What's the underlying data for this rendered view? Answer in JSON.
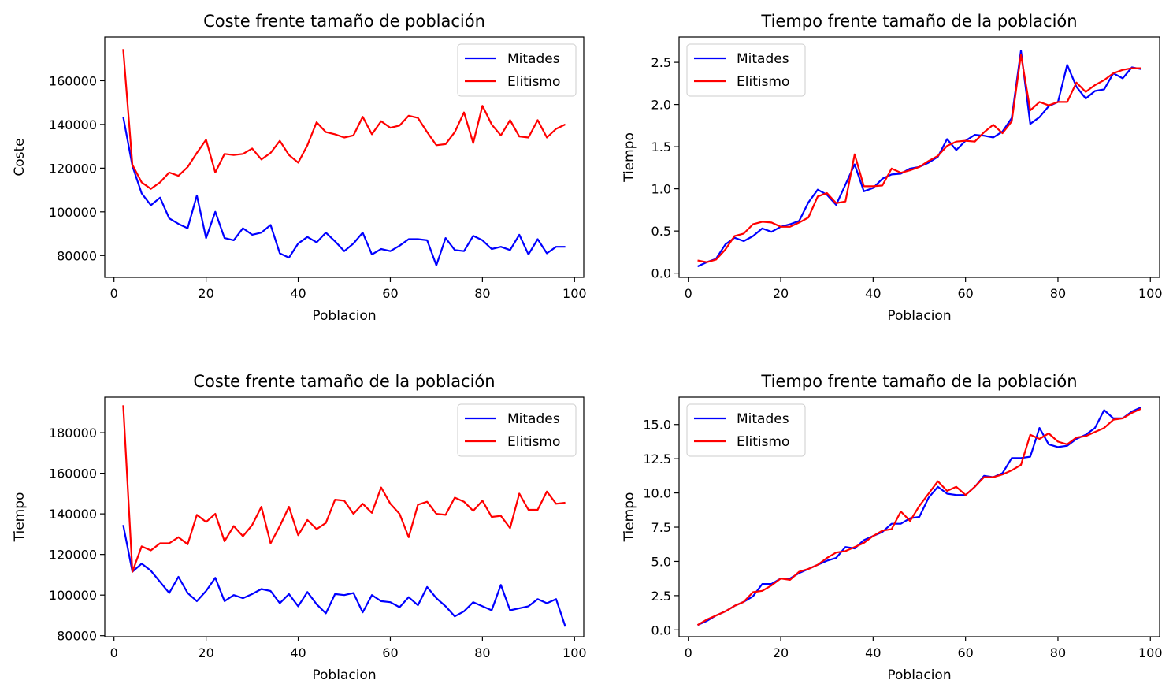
{
  "colors": {
    "Mitades": "#0000ff",
    "Elitismo": "#ff0000"
  },
  "chart_data": [
    {
      "type": "line",
      "title": "Coste frente tamaño de población",
      "xlabel": "Poblacion",
      "ylabel": "Coste",
      "xlim": [
        -2,
        102
      ],
      "ylim": [
        70000,
        180000
      ],
      "xticks": [
        0,
        20,
        40,
        60,
        80,
        100
      ],
      "yticks": [
        80000,
        100000,
        120000,
        140000,
        160000
      ],
      "ytick_labels": [
        "80000",
        "100000",
        "120000",
        "140000",
        "160000"
      ],
      "legend": "top-right",
      "grid": false,
      "x": [
        2,
        4,
        6,
        8,
        10,
        12,
        14,
        16,
        18,
        20,
        22,
        24,
        26,
        28,
        30,
        32,
        34,
        36,
        38,
        40,
        42,
        44,
        46,
        48,
        50,
        52,
        54,
        56,
        58,
        60,
        62,
        64,
        66,
        68,
        70,
        72,
        74,
        76,
        78,
        80,
        82,
        84,
        86,
        88,
        90,
        92,
        94,
        96,
        98
      ],
      "series": [
        {
          "name": "Mitades",
          "color": "#0000ff",
          "values": [
            143500,
            121000,
            108500,
            103000,
            106500,
            97000,
            94500,
            92500,
            107500,
            88000,
            100000,
            88000,
            87000,
            92500,
            89500,
            90500,
            94000,
            81000,
            79000,
            85500,
            88500,
            86000,
            90500,
            86500,
            82000,
            85500,
            90500,
            80500,
            83000,
            82000,
            84500,
            87500,
            87500,
            87000,
            75500,
            88000,
            82500,
            82000,
            89000,
            87000,
            83000,
            84000,
            82500,
            89500,
            80500,
            87500,
            81000,
            84000,
            84000
          ],
          "values_note": ""
        },
        {
          "name": "Elitismo",
          "color": "#ff0000",
          "values": [
            174500,
            121500,
            113500,
            110500,
            113500,
            118000,
            116500,
            120500,
            127000,
            133000,
            118000,
            126500,
            126000,
            126500,
            129000,
            124000,
            127000,
            132500,
            126000,
            122500,
            130500,
            141000,
            136500,
            135500,
            134000,
            135000,
            143500,
            135500,
            141500,
            138500,
            139500,
            144000,
            143000,
            136500,
            130500,
            131000,
            136500,
            145500,
            131500,
            148500,
            140000,
            135000,
            142000,
            134500,
            134000,
            142000,
            134000,
            138000,
            140000
          ]
        }
      ]
    },
    {
      "type": "line",
      "title": "Tiempo frente tamaño de la población",
      "xlabel": "Poblacion",
      "ylabel": "Tiempo",
      "xlim": [
        -2,
        102
      ],
      "ylim": [
        -0.05,
        2.8
      ],
      "xticks": [
        0,
        20,
        40,
        60,
        80,
        100
      ],
      "yticks": [
        0.0,
        0.5,
        1.0,
        1.5,
        2.0,
        2.5
      ],
      "ytick_labels": [
        "0.0",
        "0.5",
        "1.0",
        "1.5",
        "2.0",
        "2.5"
      ],
      "legend": "top-left",
      "grid": false,
      "x": [
        2,
        4,
        6,
        8,
        10,
        12,
        14,
        16,
        18,
        20,
        22,
        24,
        26,
        28,
        30,
        32,
        34,
        36,
        38,
        40,
        42,
        44,
        46,
        48,
        50,
        52,
        54,
        56,
        58,
        60,
        62,
        64,
        66,
        68,
        70,
        72,
        74,
        76,
        78,
        80,
        82,
        84,
        86,
        88,
        90,
        92,
        94,
        96,
        98
      ],
      "series": [
        {
          "name": "Mitades",
          "color": "#0000ff",
          "values": [
            0.08,
            0.13,
            0.17,
            0.34,
            0.42,
            0.38,
            0.44,
            0.53,
            0.49,
            0.55,
            0.58,
            0.62,
            0.84,
            0.99,
            0.93,
            0.81,
            1.05,
            1.29,
            0.97,
            1.01,
            1.12,
            1.17,
            1.18,
            1.24,
            1.26,
            1.31,
            1.38,
            1.59,
            1.46,
            1.57,
            1.64,
            1.63,
            1.61,
            1.68,
            1.84,
            2.64,
            1.77,
            1.85,
            1.98,
            2.03,
            2.47,
            2.21,
            2.07,
            2.16,
            2.18,
            2.37,
            2.31,
            2.44,
            2.42
          ]
        },
        {
          "name": "Elitismo",
          "color": "#ff0000",
          "values": [
            0.15,
            0.13,
            0.16,
            0.28,
            0.44,
            0.47,
            0.58,
            0.61,
            0.6,
            0.55,
            0.55,
            0.6,
            0.66,
            0.91,
            0.95,
            0.83,
            0.85,
            1.41,
            1.03,
            1.03,
            1.04,
            1.24,
            1.19,
            1.22,
            1.26,
            1.33,
            1.39,
            1.51,
            1.56,
            1.57,
            1.56,
            1.67,
            1.76,
            1.66,
            1.8,
            2.59,
            1.93,
            2.03,
            1.99,
            2.03,
            2.03,
            2.26,
            2.15,
            2.23,
            2.29,
            2.37,
            2.41,
            2.43,
            2.43
          ]
        }
      ]
    },
    {
      "type": "line",
      "title": "Coste frente tamaño de la población",
      "xlabel": "Poblacion",
      "ylabel": "Tiempo",
      "xlim": [
        -2,
        102
      ],
      "ylim": [
        79500,
        197500
      ],
      "xticks": [
        0,
        20,
        40,
        60,
        80,
        100
      ],
      "yticks": [
        80000,
        100000,
        120000,
        140000,
        160000,
        180000
      ],
      "ytick_labels": [
        "80000",
        "100000",
        "120000",
        "140000",
        "160000",
        "180000"
      ],
      "legend": "top-right",
      "grid": false,
      "x": [
        2,
        4,
        6,
        8,
        10,
        12,
        14,
        16,
        18,
        20,
        22,
        24,
        26,
        28,
        30,
        32,
        34,
        36,
        38,
        40,
        42,
        44,
        46,
        48,
        50,
        52,
        54,
        56,
        58,
        60,
        62,
        64,
        66,
        68,
        70,
        72,
        74,
        76,
        78,
        80,
        82,
        84,
        86,
        88,
        90,
        92,
        94,
        96,
        98
      ],
      "series": [
        {
          "name": "Mitades",
          "color": "#0000ff",
          "values": [
            134500,
            111500,
            115500,
            112000,
            106500,
            101000,
            109000,
            101000,
            97000,
            102000,
            108500,
            97000,
            100000,
            98500,
            100500,
            103000,
            102000,
            96000,
            100500,
            94500,
            101500,
            95500,
            91000,
            100500,
            100000,
            101000,
            91500,
            100000,
            97000,
            96500,
            94000,
            99000,
            95000,
            104000,
            98500,
            94500,
            89500,
            92000,
            96500,
            94500,
            92500,
            105000,
            92500,
            93500,
            94500,
            98000,
            96000,
            98000,
            84500
          ]
        },
        {
          "name": "Elitismo",
          "color": "#ff0000",
          "values": [
            193500,
            111500,
            124000,
            122000,
            125500,
            125500,
            128500,
            125000,
            139500,
            136000,
            140000,
            126500,
            134000,
            129000,
            134500,
            143500,
            125500,
            134000,
            143500,
            129500,
            137000,
            132500,
            135500,
            147000,
            146500,
            140000,
            145000,
            140500,
            153000,
            145000,
            140000,
            128500,
            144500,
            146000,
            140000,
            139500,
            148000,
            146000,
            141500,
            146500,
            138500,
            139000,
            133000,
            150000,
            142000,
            142000,
            151000,
            145000,
            145500
          ]
        }
      ]
    },
    {
      "type": "line",
      "title": "Tiempo frente tamaño de la población",
      "xlabel": "Poblacion",
      "ylabel": "Tiempo",
      "xlim": [
        -2,
        102
      ],
      "ylim": [
        -0.5,
        17.0
      ],
      "xticks": [
        0,
        20,
        40,
        60,
        80,
        100
      ],
      "yticks": [
        0.0,
        2.5,
        5.0,
        7.5,
        10.0,
        12.5,
        15.0
      ],
      "ytick_labels": [
        "0.0",
        "2.5",
        "5.0",
        "7.5",
        "10.0",
        "12.5",
        "15.0"
      ],
      "legend": "top-left",
      "grid": false,
      "x": [
        2,
        4,
        6,
        8,
        10,
        12,
        14,
        16,
        18,
        20,
        22,
        24,
        26,
        28,
        30,
        32,
        34,
        36,
        38,
        40,
        42,
        44,
        46,
        48,
        50,
        52,
        54,
        56,
        58,
        60,
        62,
        64,
        66,
        68,
        70,
        72,
        74,
        76,
        78,
        80,
        82,
        84,
        86,
        88,
        90,
        92,
        94,
        96,
        98
      ],
      "series": [
        {
          "name": "Mitades",
          "color": "#0000ff",
          "values": [
            0.35,
            0.65,
            1.05,
            1.35,
            1.75,
            2.05,
            2.45,
            3.35,
            3.35,
            3.75,
            3.75,
            4.15,
            4.45,
            4.75,
            5.05,
            5.25,
            6.05,
            5.95,
            6.55,
            6.85,
            7.15,
            7.75,
            7.75,
            8.15,
            8.25,
            9.65,
            10.45,
            9.95,
            9.85,
            9.85,
            10.45,
            11.25,
            11.15,
            11.45,
            12.55,
            12.55,
            12.65,
            14.75,
            13.55,
            13.35,
            13.45,
            13.95,
            14.25,
            14.75,
            16.05,
            15.45,
            15.45,
            15.95,
            16.25
          ]
        },
        {
          "name": "Elitismo",
          "color": "#ff0000",
          "values": [
            0.35,
            0.75,
            1.05,
            1.35,
            1.75,
            2.05,
            2.75,
            2.85,
            3.25,
            3.75,
            3.65,
            4.25,
            4.45,
            4.75,
            5.25,
            5.65,
            5.75,
            6.05,
            6.35,
            6.85,
            7.25,
            7.35,
            8.65,
            7.95,
            9.05,
            9.95,
            10.85,
            10.15,
            10.45,
            9.85,
            10.45,
            11.15,
            11.15,
            11.35,
            11.65,
            12.05,
            14.25,
            13.95,
            14.35,
            13.75,
            13.55,
            14.05,
            14.15,
            14.45,
            14.75,
            15.35,
            15.45,
            15.85,
            16.15
          ]
        }
      ]
    }
  ]
}
